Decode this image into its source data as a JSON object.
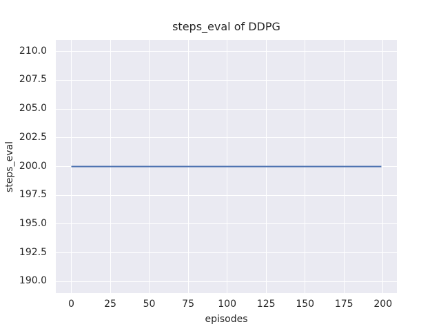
{
  "chart_data": {
    "type": "line",
    "title": "steps_eval of DDPG",
    "xlabel": "episodes",
    "ylabel": "steps_eval",
    "xlim": [
      -9.95,
      208.95
    ],
    "ylim": [
      189,
      211
    ],
    "xticks": [
      0,
      25,
      50,
      75,
      100,
      125,
      150,
      175,
      200
    ],
    "xtick_labels": [
      "0",
      "25",
      "50",
      "75",
      "100",
      "125",
      "150",
      "175",
      "200"
    ],
    "yticks": [
      190,
      192.5,
      195,
      197.5,
      200,
      202.5,
      205,
      207.5,
      210
    ],
    "ytick_labels": [
      "190.0",
      "192.5",
      "195.0",
      "197.5",
      "200.0",
      "202.5",
      "205.0",
      "207.5",
      "210.0"
    ],
    "grid": true,
    "legend_position": "none",
    "series": [
      {
        "name": "steps_eval",
        "x": [
          0,
          199
        ],
        "y": [
          200,
          200
        ],
        "color": "#4C72B0",
        "linewidth": 2
      }
    ],
    "colors": {
      "figure_background": "#FFFFFF",
      "axes_background": "#EAEAF2",
      "grid": "#FFFFFF",
      "text": "#262626",
      "line": "#4C72B0"
    }
  }
}
